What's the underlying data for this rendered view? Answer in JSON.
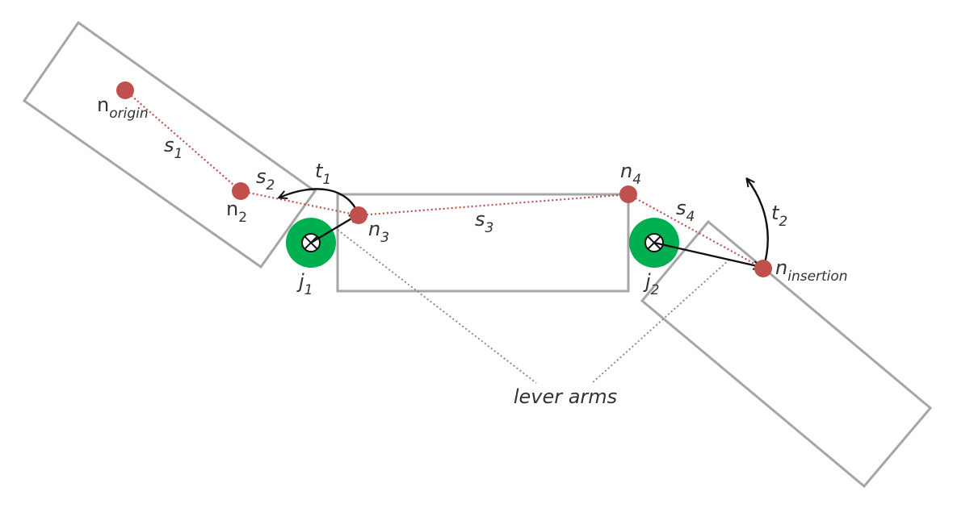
{
  "colors": {
    "node": "#c0504d",
    "joint": "#00b050",
    "segment": "#c0504d",
    "outline": "#a6a6a6",
    "arrow": "#111111",
    "lever_line": "#8c8c8c",
    "text": "#333333"
  },
  "nodes": {
    "origin": {
      "base": "n",
      "sub": "origin"
    },
    "n2": {
      "base": "n",
      "sub": "2"
    },
    "n3": {
      "base": "n",
      "sub": "3"
    },
    "n4": {
      "base": "n",
      "sub": "4"
    },
    "insertion": {
      "base": "n",
      "sub": "insertion"
    }
  },
  "segments": {
    "s1": {
      "base": "s",
      "sub": "1"
    },
    "s2": {
      "base": "s",
      "sub": "2"
    },
    "s3": {
      "base": "s",
      "sub": "3"
    },
    "s4": {
      "base": "s",
      "sub": "4"
    }
  },
  "joints": {
    "j1": {
      "base": "j",
      "sub": "1",
      "icon": "axis-into-page-icon"
    },
    "j2": {
      "base": "j",
      "sub": "2",
      "icon": "axis-into-page-icon"
    }
  },
  "torques": {
    "t1": {
      "base": "t",
      "sub": "1"
    },
    "t2": {
      "base": "t",
      "sub": "2"
    }
  },
  "annotation": {
    "lever_arms": "lever arms"
  }
}
